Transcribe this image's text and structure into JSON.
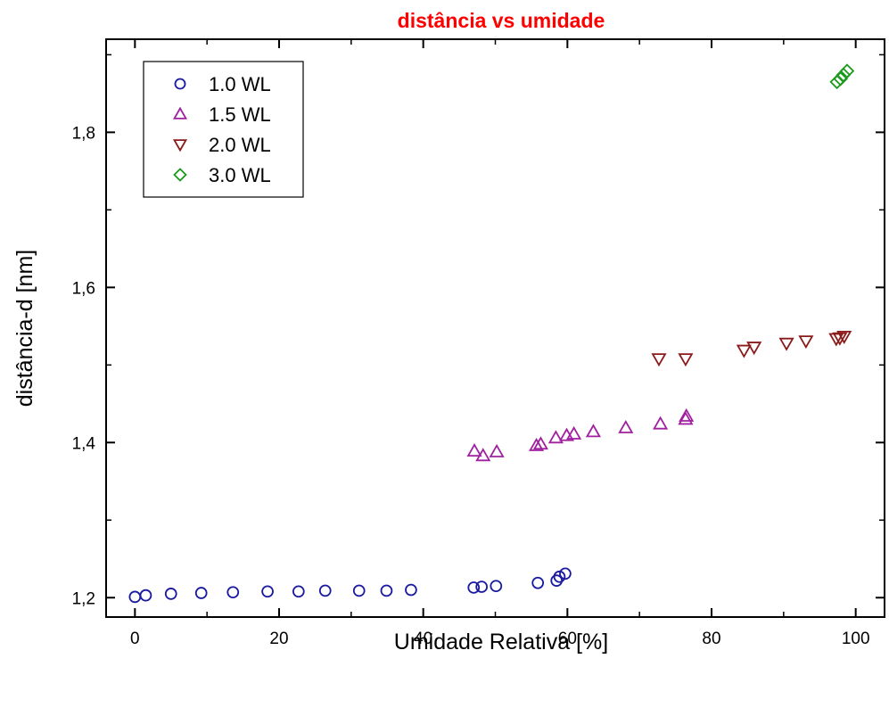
{
  "chart_data": {
    "type": "scatter",
    "title": "distância vs umidade",
    "xlabel": "Umidade Relativa [%]",
    "ylabel": "distância-d [nm]",
    "xlim": [
      -4,
      104
    ],
    "ylim": [
      1.175,
      1.92
    ],
    "x_ticks": [
      {
        "value": 0,
        "label": "0"
      },
      {
        "value": 20,
        "label": "20"
      },
      {
        "value": 40,
        "label": "40"
      },
      {
        "value": 60,
        "label": "60"
      },
      {
        "value": 80,
        "label": "80"
      },
      {
        "value": 100,
        "label": "100"
      }
    ],
    "y_ticks": [
      {
        "value": 1.2,
        "label": "1,2"
      },
      {
        "value": 1.4,
        "label": "1,4"
      },
      {
        "value": 1.6,
        "label": "1,6"
      },
      {
        "value": 1.8,
        "label": "1,8"
      }
    ],
    "grid": false,
    "legend_position": "top-left",
    "series": [
      {
        "name": "1.0 WL",
        "marker": "circle",
        "color": "#1a1aa0",
        "points": [
          [
            0.0,
            1.201
          ],
          [
            1.5,
            1.203
          ],
          [
            5.0,
            1.205
          ],
          [
            9.2,
            1.206
          ],
          [
            13.6,
            1.207
          ],
          [
            18.4,
            1.208
          ],
          [
            22.7,
            1.208
          ],
          [
            26.4,
            1.209
          ],
          [
            31.1,
            1.209
          ],
          [
            34.9,
            1.209
          ],
          [
            38.3,
            1.21
          ],
          [
            47.0,
            1.213
          ],
          [
            48.1,
            1.214
          ],
          [
            50.1,
            1.215
          ],
          [
            55.9,
            1.219
          ],
          [
            58.5,
            1.222
          ],
          [
            58.9,
            1.227
          ],
          [
            59.7,
            1.231
          ]
        ]
      },
      {
        "name": "1.5 WL",
        "marker": "triangle-up",
        "color": "#a020a0",
        "points": [
          [
            47.1,
            1.389
          ],
          [
            48.3,
            1.383
          ],
          [
            50.2,
            1.388
          ],
          [
            55.7,
            1.396
          ],
          [
            56.3,
            1.398
          ],
          [
            58.4,
            1.406
          ],
          [
            59.9,
            1.409
          ],
          [
            60.9,
            1.411
          ],
          [
            63.6,
            1.414
          ],
          [
            68.1,
            1.419
          ],
          [
            72.9,
            1.424
          ],
          [
            76.4,
            1.43
          ],
          [
            76.5,
            1.434
          ]
        ]
      },
      {
        "name": "2.0 WL",
        "marker": "triangle-down",
        "color": "#8b1a1a",
        "points": [
          [
            72.7,
            1.508
          ],
          [
            76.4,
            1.508
          ],
          [
            84.5,
            1.519
          ],
          [
            85.9,
            1.523
          ],
          [
            90.4,
            1.528
          ],
          [
            93.1,
            1.531
          ],
          [
            97.3,
            1.534
          ],
          [
            97.8,
            1.535
          ],
          [
            98.4,
            1.537
          ]
        ]
      },
      {
        "name": "3.0 WL",
        "marker": "diamond",
        "color": "#1a9a1a",
        "points": [
          [
            97.4,
            1.865
          ],
          [
            97.9,
            1.869
          ],
          [
            98.3,
            1.874
          ],
          [
            98.8,
            1.879
          ]
        ]
      }
    ]
  }
}
